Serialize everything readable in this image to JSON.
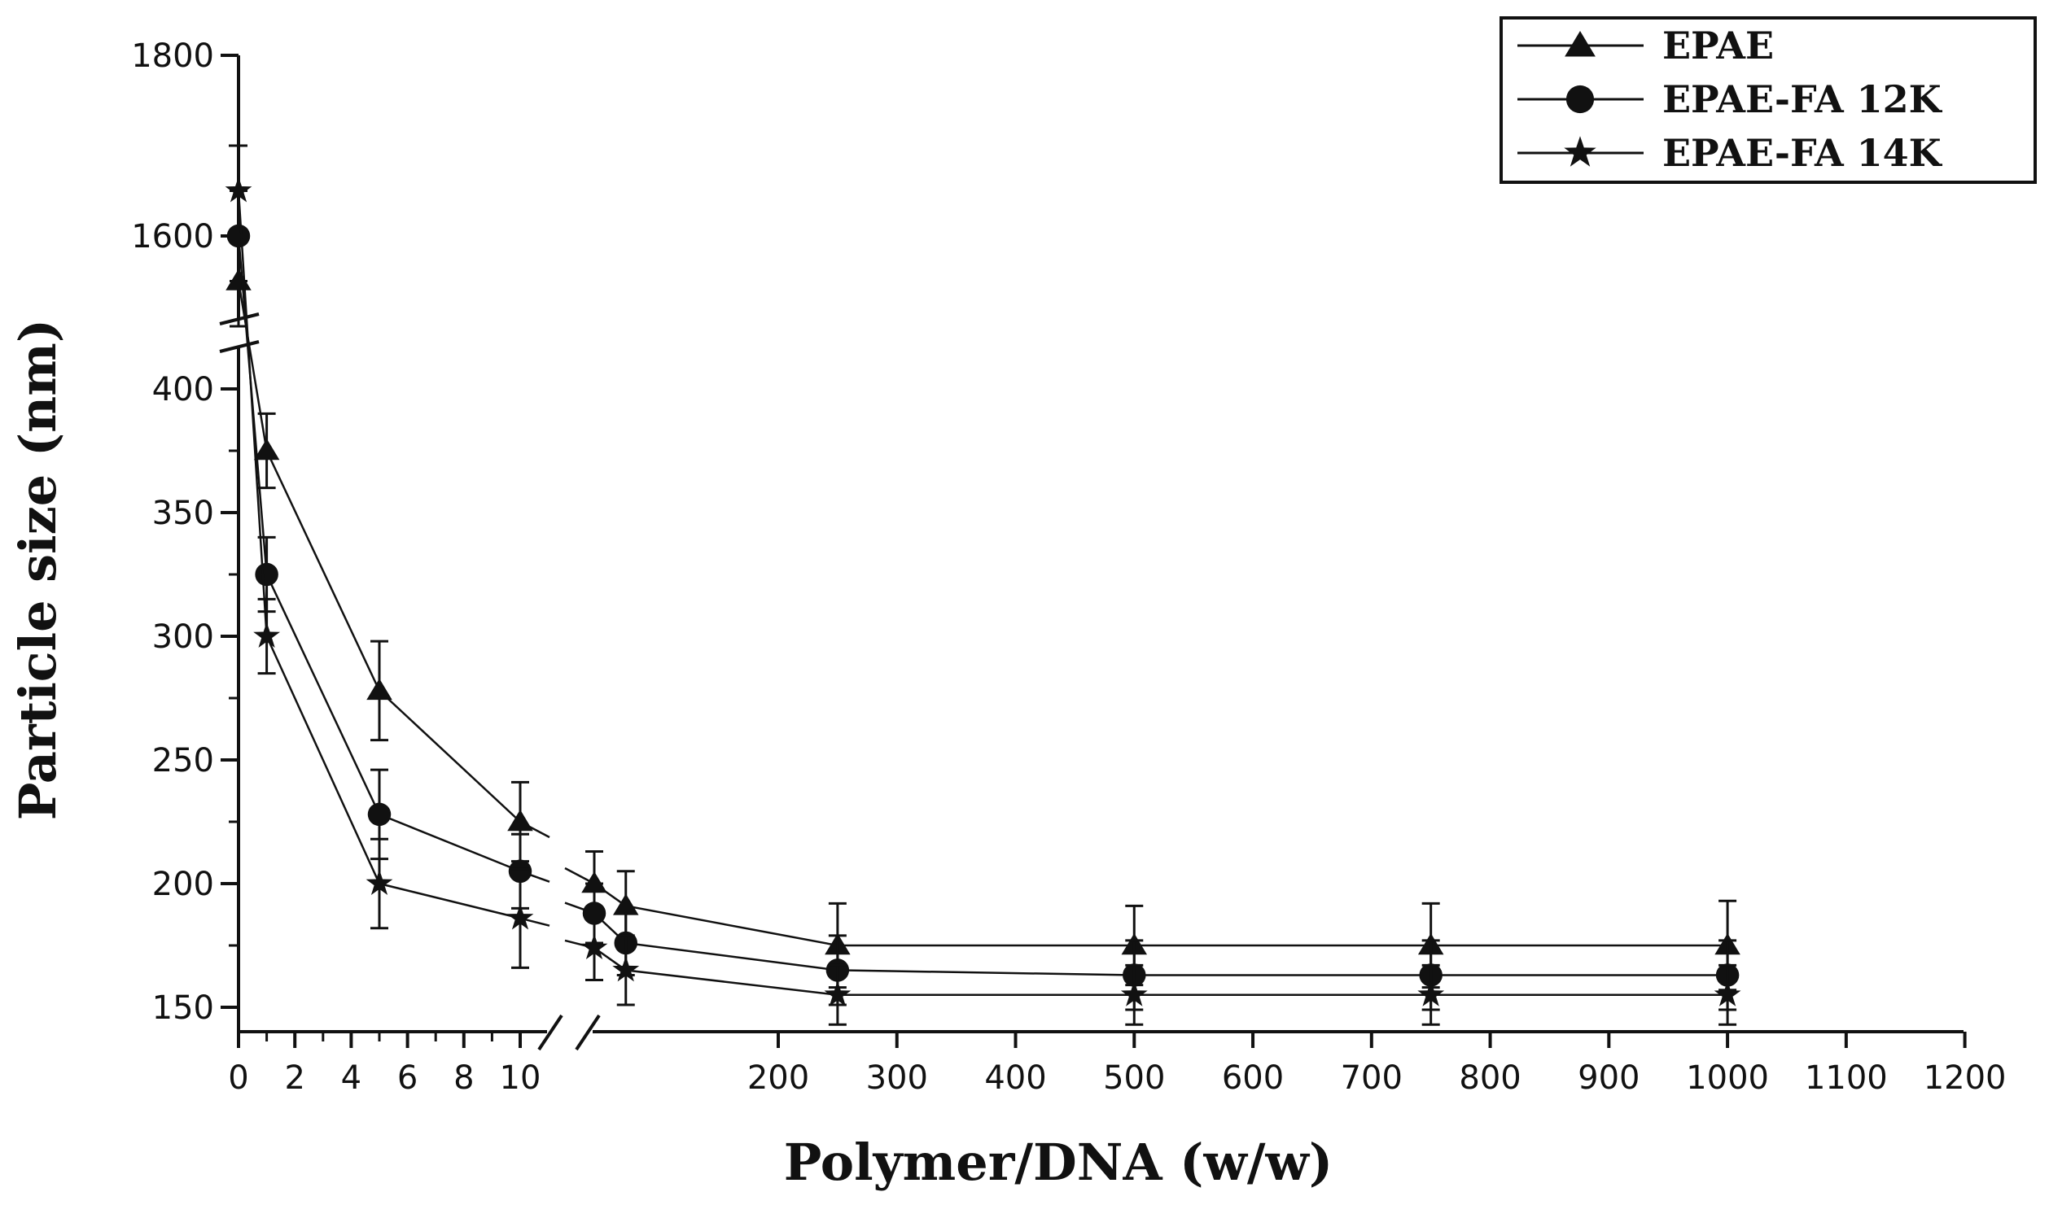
{
  "chart_data": {
    "type": "line",
    "xlabel": "Polymer/DNA (w/w)",
    "ylabel": "Particle size (nm)",
    "legend_position": "top-right",
    "y_axis_break": true,
    "x_axis_break": true,
    "y_ticks": [
      {
        "value": 1800,
        "label": "1800"
      },
      {
        "value": 1600,
        "label": "1600"
      },
      {
        "value": 400,
        "label": "400"
      },
      {
        "value": 350,
        "label": "350"
      },
      {
        "value": 300,
        "label": "300"
      },
      {
        "value": 250,
        "label": "250"
      },
      {
        "value": 200,
        "label": "200"
      },
      {
        "value": 150,
        "label": "150"
      }
    ],
    "x_ticks_low": [
      {
        "value": 0,
        "label": "0"
      },
      {
        "value": 2,
        "label": "2"
      },
      {
        "value": 4,
        "label": "4"
      },
      {
        "value": 6,
        "label": "6"
      },
      {
        "value": 8,
        "label": "8"
      },
      {
        "value": 10,
        "label": "10"
      }
    ],
    "x_ticks_high": [
      {
        "value": 200,
        "label": "200"
      },
      {
        "value": 300,
        "label": "300"
      },
      {
        "value": 400,
        "label": "400"
      },
      {
        "value": 500,
        "label": "500"
      },
      {
        "value": 600,
        "label": "600"
      },
      {
        "value": 700,
        "label": "700"
      },
      {
        "value": 800,
        "label": "800"
      },
      {
        "value": 900,
        "label": "900"
      },
      {
        "value": 1000,
        "label": "1000"
      },
      {
        "value": 1100,
        "label": "1100"
      },
      {
        "value": 1200,
        "label": "1200"
      }
    ],
    "series": [
      {
        "name": "EPAE",
        "marker": "triangle",
        "points": [
          {
            "x": 0,
            "y": 1550,
            "err": 50
          },
          {
            "x": 1,
            "y": 375,
            "err": 15
          },
          {
            "x": 5,
            "y": 278,
            "err": 20
          },
          {
            "x": 10,
            "y": 225,
            "err": 16
          },
          {
            "x": 25,
            "y": 200,
            "err": 13
          },
          {
            "x": 50,
            "y": 191,
            "err": 14
          },
          {
            "x": 250,
            "y": 175,
            "err": 17
          },
          {
            "x": 500,
            "y": 175,
            "err": 16
          },
          {
            "x": 750,
            "y": 175,
            "err": 17
          },
          {
            "x": 1000,
            "y": 175,
            "err": 18
          }
        ]
      },
      {
        "name": "EPAE-FA 12K",
        "marker": "circle",
        "points": [
          {
            "x": 0,
            "y": 1600,
            "err": 50
          },
          {
            "x": 1,
            "y": 325,
            "err": 15
          },
          {
            "x": 5,
            "y": 228,
            "err": 18
          },
          {
            "x": 10,
            "y": 205,
            "err": 15
          },
          {
            "x": 25,
            "y": 188,
            "err": 12
          },
          {
            "x": 50,
            "y": 176,
            "err": 13
          },
          {
            "x": 250,
            "y": 165,
            "err": 14
          },
          {
            "x": 500,
            "y": 163,
            "err": 14
          },
          {
            "x": 750,
            "y": 163,
            "err": 14
          },
          {
            "x": 1000,
            "y": 163,
            "err": 14
          }
        ]
      },
      {
        "name": "EPAE-FA 14K",
        "marker": "star",
        "points": [
          {
            "x": 0,
            "y": 1650,
            "err": 50
          },
          {
            "x": 1,
            "y": 300,
            "err": 15
          },
          {
            "x": 5,
            "y": 200,
            "err": 18
          },
          {
            "x": 10,
            "y": 186,
            "err": 20
          },
          {
            "x": 25,
            "y": 174,
            "err": 13
          },
          {
            "x": 50,
            "y": 165,
            "err": 14
          },
          {
            "x": 250,
            "y": 155,
            "err": 12
          },
          {
            "x": 500,
            "y": 155,
            "err": 12
          },
          {
            "x": 750,
            "y": 155,
            "err": 12
          },
          {
            "x": 1000,
            "y": 155,
            "err": 12
          }
        ]
      }
    ]
  }
}
